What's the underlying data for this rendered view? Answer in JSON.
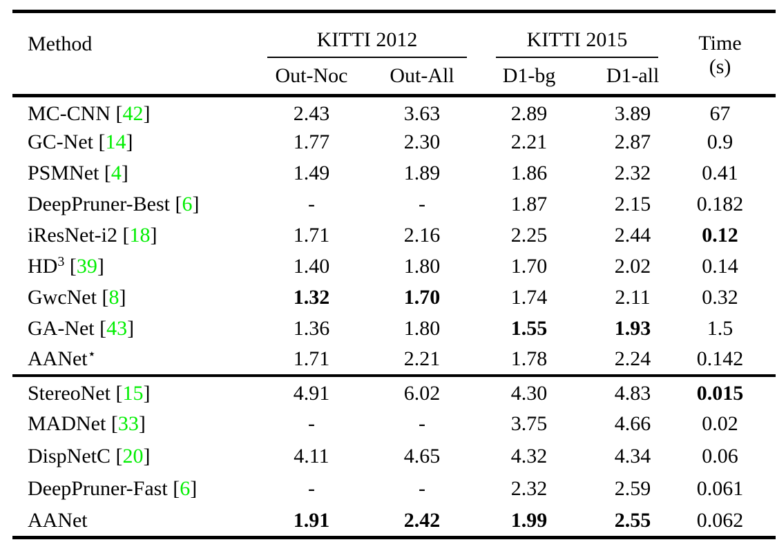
{
  "table": {
    "citation_color": "#00ee00",
    "text_color": "#000000",
    "citation_brackets": [
      "[",
      "]"
    ],
    "header": {
      "method": "Method",
      "groups": [
        {
          "label": "KITTI 2012",
          "cols": [
            "Out-Noc",
            "Out-All"
          ]
        },
        {
          "label": "KITTI 2015",
          "cols": [
            "D1-bg",
            "D1-all"
          ]
        }
      ],
      "time_label": "Time",
      "time_unit": "(s)"
    },
    "sections": [
      {
        "rows": [
          {
            "name": "MC-CNN",
            "sup": "",
            "cite": "42",
            "values": [
              "2.43",
              "3.63",
              "2.89",
              "3.89",
              "67"
            ],
            "bold": [
              false,
              false,
              false,
              false,
              false
            ]
          },
          {
            "name": "GC-Net",
            "sup": "",
            "cite": "14",
            "values": [
              "1.77",
              "2.30",
              "2.21",
              "2.87",
              "0.9"
            ],
            "bold": [
              false,
              false,
              false,
              false,
              false
            ]
          },
          {
            "name": "PSMNet",
            "sup": "",
            "cite": "4",
            "values": [
              "1.49",
              "1.89",
              "1.86",
              "2.32",
              "0.41"
            ],
            "bold": [
              false,
              false,
              false,
              false,
              false
            ]
          },
          {
            "name": "DeepPruner-Best",
            "sup": "",
            "cite": "6",
            "values": [
              "-",
              "-",
              "1.87",
              "2.15",
              "0.182"
            ],
            "bold": [
              false,
              false,
              false,
              false,
              false
            ]
          },
          {
            "name": "iResNet-i2",
            "sup": "",
            "cite": "18",
            "values": [
              "1.71",
              "2.16",
              "2.25",
              "2.44",
              "0.12"
            ],
            "bold": [
              false,
              false,
              false,
              false,
              true
            ]
          },
          {
            "name": "HD",
            "sup": "3",
            "cite": "39",
            "values": [
              "1.40",
              "1.80",
              "1.70",
              "2.02",
              "0.14"
            ],
            "bold": [
              false,
              false,
              false,
              false,
              false
            ]
          },
          {
            "name": "GwcNet",
            "sup": "",
            "cite": "8",
            "values": [
              "1.32",
              "1.70",
              "1.74",
              "2.11",
              "0.32"
            ],
            "bold": [
              true,
              true,
              false,
              false,
              false
            ]
          },
          {
            "name": "GA-Net",
            "sup": "",
            "cite": "43",
            "values": [
              "1.36",
              "1.80",
              "1.55",
              "1.93",
              "1.5"
            ],
            "bold": [
              false,
              false,
              true,
              true,
              false
            ]
          },
          {
            "name": "AANet",
            "sup": "⋆",
            "cite": "",
            "values": [
              "1.71",
              "2.21",
              "1.78",
              "2.24",
              "0.142"
            ],
            "bold": [
              false,
              false,
              false,
              false,
              false
            ]
          }
        ]
      },
      {
        "rows": [
          {
            "name": "StereoNet",
            "sup": "",
            "cite": "15",
            "values": [
              "4.91",
              "6.02",
              "4.30",
              "4.83",
              "0.015"
            ],
            "bold": [
              false,
              false,
              false,
              false,
              true
            ]
          },
          {
            "name": "MADNet",
            "sup": "",
            "cite": "33",
            "values": [
              "-",
              "-",
              "3.75",
              "4.66",
              "0.02"
            ],
            "bold": [
              false,
              false,
              false,
              false,
              false
            ]
          },
          {
            "name": "DispNetC",
            "sup": "",
            "cite": "20",
            "values": [
              "4.11",
              "4.65",
              "4.32",
              "4.34",
              "0.06"
            ],
            "bold": [
              false,
              false,
              false,
              false,
              false
            ]
          },
          {
            "name": "DeepPruner-Fast",
            "sup": "",
            "cite": "6",
            "values": [
              "-",
              "-",
              "2.32",
              "2.59",
              "0.061"
            ],
            "bold": [
              false,
              false,
              false,
              false,
              false
            ]
          },
          {
            "name": "AANet",
            "sup": "",
            "cite": "",
            "values": [
              "1.91",
              "2.42",
              "1.99",
              "2.55",
              "0.062"
            ],
            "bold": [
              true,
              true,
              true,
              true,
              false
            ]
          }
        ]
      }
    ]
  }
}
